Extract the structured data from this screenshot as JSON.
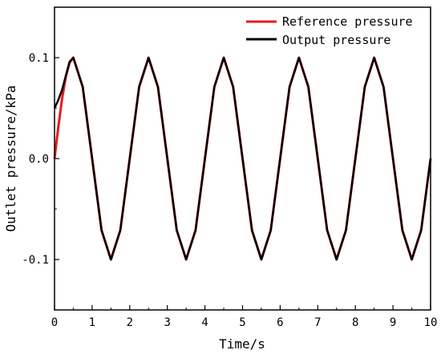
{
  "chart_data": {
    "type": "line",
    "xlabel": "Time/s",
    "ylabel": "Outlet pressure/kPa",
    "xlim": [
      0,
      10
    ],
    "ylim": [
      -0.15,
      0.15
    ],
    "x_ticks": [
      "0",
      "1",
      "2",
      "3",
      "4",
      "5",
      "6",
      "7",
      "8",
      "9",
      "10"
    ],
    "y_ticks": [
      "-0.1",
      "0.0",
      "0.1"
    ],
    "y_tick_values": [
      -0.1,
      0.0,
      0.1
    ],
    "grid": false,
    "legend_position": "top-right",
    "series": [
      {
        "name": "Reference pressure",
        "color": "#e8191c",
        "x": [
          0,
          0.1,
          0.2,
          0.3,
          0.4,
          0.5,
          0.75,
          1.0,
          1.25,
          1.5,
          1.75,
          2.0,
          2.25,
          2.5,
          2.75,
          3.0,
          3.25,
          3.5,
          3.75,
          4.0,
          4.25,
          4.5,
          4.75,
          5.0,
          5.25,
          5.5,
          5.75,
          6.0,
          6.25,
          6.5,
          6.75,
          7.0,
          7.25,
          7.5,
          7.75,
          8.0,
          8.25,
          8.5,
          8.75,
          9.0,
          9.25,
          9.5,
          9.75,
          10.0
        ],
        "y": [
          0.0,
          0.031,
          0.059,
          0.081,
          0.095,
          0.1,
          0.071,
          0.0,
          -0.071,
          -0.1,
          -0.071,
          0.0,
          0.071,
          0.1,
          0.071,
          0.0,
          -0.071,
          -0.1,
          -0.071,
          0.0,
          0.071,
          0.1,
          0.071,
          0.0,
          -0.071,
          -0.1,
          -0.071,
          0.0,
          0.071,
          0.1,
          0.071,
          0.0,
          -0.071,
          -0.1,
          -0.071,
          0.0,
          0.071,
          0.1,
          0.071,
          0.0,
          -0.071,
          -0.1,
          -0.071,
          0.0
        ]
      },
      {
        "name": "Output pressure",
        "color": "#000000",
        "x": [
          0,
          0.1,
          0.2,
          0.3,
          0.4,
          0.5,
          0.75,
          1.0,
          1.25,
          1.5,
          1.75,
          2.0,
          2.25,
          2.5,
          2.75,
          3.0,
          3.25,
          3.5,
          3.75,
          4.0,
          4.25,
          4.5,
          4.75,
          5.0,
          5.25,
          5.5,
          5.75,
          6.0,
          6.25,
          6.5,
          6.75,
          7.0,
          7.25,
          7.5,
          7.75,
          8.0,
          8.25,
          8.5,
          8.75,
          9.0,
          9.25,
          9.5,
          9.75,
          10.0
        ],
        "y": [
          0.05,
          0.058,
          0.068,
          0.082,
          0.096,
          0.1,
          0.071,
          0.0,
          -0.071,
          -0.1,
          -0.071,
          0.0,
          0.071,
          0.1,
          0.071,
          0.0,
          -0.071,
          -0.1,
          -0.071,
          0.0,
          0.071,
          0.1,
          0.071,
          0.0,
          -0.071,
          -0.1,
          -0.071,
          0.0,
          0.071,
          0.1,
          0.071,
          0.0,
          -0.071,
          -0.1,
          -0.071,
          0.0,
          0.071,
          0.1,
          0.071,
          0.0,
          -0.071,
          -0.1,
          -0.071,
          0.0
        ]
      }
    ]
  }
}
